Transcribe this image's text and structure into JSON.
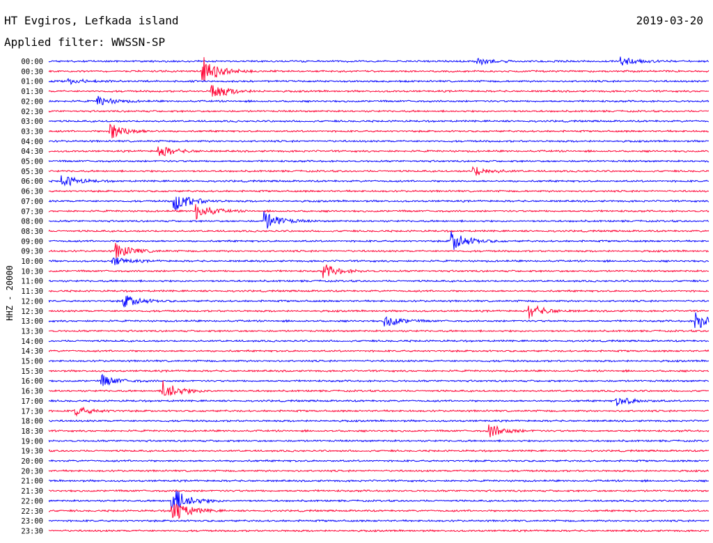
{
  "header": {
    "station": "HT Evgiros, Lefkada island",
    "filter": "Applied filter: WWSSN-SP",
    "date": "2019-03-20"
  },
  "channel": "HHZ - 20000",
  "colors": {
    "odd": "#0000ff",
    "even": "#ff0033",
    "text": "#000000"
  },
  "chart_data": {
    "type": "line",
    "title": "HT Evgiros, Lefkada island",
    "subtitle": "Applied filter: WWSSN-SP",
    "date": "2019-03-20",
    "ylabel": "HHZ - 20000",
    "xlabel": "",
    "trace_times": [
      "00:00",
      "00:30",
      "01:00",
      "01:30",
      "02:00",
      "02:30",
      "03:00",
      "03:30",
      "04:00",
      "04:30",
      "05:00",
      "05:30",
      "06:00",
      "06:30",
      "07:00",
      "07:30",
      "08:00",
      "08:30",
      "09:00",
      "09:30",
      "10:00",
      "10:30",
      "11:00",
      "11:30",
      "12:00",
      "12:30",
      "13:00",
      "13:30",
      "14:00",
      "14:30",
      "15:00",
      "15:30",
      "16:00",
      "16:30",
      "17:00",
      "17:30",
      "18:00",
      "18:30",
      "19:00",
      "19:30",
      "20:00",
      "20:30",
      "21:00",
      "21:30",
      "22:00",
      "22:30",
      "23:00",
      "23:30"
    ],
    "trace_minutes": 30,
    "trace_colors": [
      "#0000ff",
      "#ff0033"
    ],
    "grid": false,
    "events": [
      {
        "t": "00:00",
        "min": 19.5,
        "amp": 0.8
      },
      {
        "t": "00:00",
        "min": 26.0,
        "amp": 1.0
      },
      {
        "t": "00:30",
        "min": 7.0,
        "amp": 3.5
      },
      {
        "t": "01:00",
        "min": 0.9,
        "amp": 0.7
      },
      {
        "t": "01:30",
        "min": 7.4,
        "amp": 2.2
      },
      {
        "t": "02:00",
        "min": 2.2,
        "amp": 1.2
      },
      {
        "t": "03:30",
        "min": 2.8,
        "amp": 2.0
      },
      {
        "t": "04:30",
        "min": 5.0,
        "amp": 1.5
      },
      {
        "t": "05:30",
        "min": 19.3,
        "amp": 1.2
      },
      {
        "t": "06:00",
        "min": 0.6,
        "amp": 1.5
      },
      {
        "t": "07:00",
        "min": 5.7,
        "amp": 2.5
      },
      {
        "t": "07:30",
        "min": 6.7,
        "amp": 2.0
      },
      {
        "t": "08:00",
        "min": 9.8,
        "amp": 2.2
      },
      {
        "t": "09:00",
        "min": 18.3,
        "amp": 2.4
      },
      {
        "t": "09:30",
        "min": 3.0,
        "amp": 2.0
      },
      {
        "t": "10:00",
        "min": 2.9,
        "amp": 1.0
      },
      {
        "t": "10:30",
        "min": 12.5,
        "amp": 1.6
      },
      {
        "t": "12:00",
        "min": 3.4,
        "amp": 1.6
      },
      {
        "t": "12:30",
        "min": 21.8,
        "amp": 1.8
      },
      {
        "t": "13:00",
        "min": 15.3,
        "amp": 1.4
      },
      {
        "t": "13:00",
        "min": 29.4,
        "amp": 2.0
      },
      {
        "t": "16:00",
        "min": 2.4,
        "amp": 1.4
      },
      {
        "t": "16:30",
        "min": 5.2,
        "amp": 2.5
      },
      {
        "t": "17:00",
        "min": 25.8,
        "amp": 1.2
      },
      {
        "t": "17:30",
        "min": 1.2,
        "amp": 1.2
      },
      {
        "t": "18:30",
        "min": 20.0,
        "amp": 1.6
      },
      {
        "t": "22:00",
        "min": 5.6,
        "amp": 3.5
      },
      {
        "t": "22:30",
        "min": 5.6,
        "amp": 3.0
      }
    ]
  }
}
